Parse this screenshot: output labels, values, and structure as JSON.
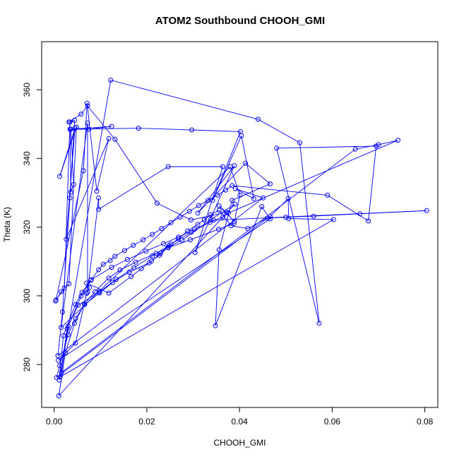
{
  "chart_data": {
    "type": "line",
    "title": "ATOM2 Southbound CHOOH_GMI",
    "xlabel": "CHOOH_GMI",
    "ylabel": "Theta (K)",
    "xlim": [
      -0.0027,
      0.0828
    ],
    "ylim": [
      267.5,
      374
    ],
    "xticks": [
      0.0,
      0.02,
      0.04,
      0.06,
      0.08
    ],
    "xtick_labels": [
      "0.00",
      "0.02",
      "0.04",
      "0.06",
      "0.08"
    ],
    "yticks": [
      280,
      300,
      320,
      340,
      360
    ],
    "ytick_labels": [
      "280",
      "300",
      "320",
      "340",
      "360"
    ],
    "grid": false,
    "legend": "none",
    "series": [
      {
        "color": "#0000ff",
        "marker": "open-circle",
        "x": [
          0.0003,
          0.0015,
          0.0032,
          0.0048,
          0.0012,
          0.0045,
          0.0026,
          0.0118,
          0.0092,
          0.0071,
          0.0063,
          0.0004,
          0.0022,
          0.0034,
          0.0036,
          0.0042,
          0.0036,
          0.0075,
          0.0124,
          0.0034,
          0.0182,
          0.0297,
          0.0402,
          0.0342,
          0.0404,
          0.0431,
          0.0391,
          0.0451,
          0.0008,
          0.0018,
          0.0034,
          0.0044,
          0.0032,
          0.0058,
          0.0072,
          0.0131,
          0.0222,
          0.0295,
          0.0372,
          0.0356,
          0.0389,
          0.0401,
          0.038,
          0.0015,
          0.0072,
          0.0072,
          0.0096,
          0.0096,
          0.0246,
          0.0364,
          0.0304,
          0.0389,
          0.031,
          0.0413,
          0.0466,
          0.0384,
          0.0356,
          0.0348,
          0.0448,
          0.0466,
          0.0009,
          0.0046,
          0.007,
          0.0076,
          0.007,
          0.0118,
          0.0166,
          0.0188,
          0.021,
          0.023,
          0.0248,
          0.0268,
          0.0288,
          0.031,
          0.0324,
          0.0338,
          0.0356,
          0.0382,
          0.0418,
          0.0466,
          0.0505,
          0.0506,
          0.0603,
          0.0013,
          0.0028,
          0.0058,
          0.0079,
          0.0096,
          0.0106,
          0.0121,
          0.0131,
          0.0152,
          0.0171,
          0.0192,
          0.0212,
          0.0232,
          0.0252,
          0.0272,
          0.0292,
          0.0312,
          0.0332,
          0.0352,
          0.037,
          0.0384,
          0.059,
          0.0678,
          0.0695,
          0.048,
          0.0572,
          0.053,
          0.044,
          0.0122,
          0.0011,
          0.002,
          0.0046,
          0.006,
          0.008,
          0.0124,
          0.0158,
          0.0198,
          0.0236,
          0.0268,
          0.0303,
          0.0336,
          0.0364,
          0.0376,
          0.0742,
          0.07,
          0.065,
          0.0016,
          0.003,
          0.0052,
          0.0098,
          0.0134,
          0.0172,
          0.0212,
          0.0252,
          0.0296,
          0.0344,
          0.0804,
          0.066,
          0.056,
          0.05,
          0.046,
          0.0005,
          0.0012,
          0.003,
          0.0046,
          0.0066,
          0.0098,
          0.0126,
          0.0162,
          0.0205,
          0.0227,
          0.0245,
          0.0276,
          0.0338,
          0.039,
          0.001,
          0.0024,
          0.0044,
          0.0065,
          0.0088,
          0.0118,
          0.0142,
          0.0176,
          0.022,
          0.0246,
          0.0294,
          0.0355,
          0.0388
        ],
        "y": [
          298.5,
          301.2,
          303.5,
          349.1,
          334.8,
          348.8,
          316.5,
          345.8,
          330.5,
          356.1,
          336.4,
          298.8,
          302.3,
          350.6,
          330.2,
          332.4,
          348.5,
          348.5,
          349.3,
          348.5,
          348.8,
          348.3,
          347.8,
          327.8,
          346.6,
          328.3,
          331.2,
          328.5,
          282.6,
          295.3,
          328.5,
          351.1,
          350.6,
          352.9,
          355.3,
          345.6,
          327.0,
          322.1,
          324.3,
          326.2,
          321.7,
          329.3,
          337.6,
          290.8,
          350.3,
          301.1,
          328.5,
          325.2,
          337.6,
          337.6,
          312.6,
          337.9,
          324.1,
          338.6,
          332.6,
          327.8,
          313.4,
          291.3,
          326.0,
          322.4,
          281.2,
          286.2,
          300.7,
          302.4,
          303.7,
          300.8,
          305.6,
          307.9,
          310.1,
          312.4,
          314.6,
          316.6,
          318.9,
          320.8,
          322.1,
          323.6,
          324.9,
          320.4,
          319.6,
          323.1,
          328.3,
          322.5,
          322.2,
          276.4,
          290.4,
          299.9,
          304.5,
          307.6,
          309.2,
          310.3,
          311.5,
          313.2,
          314.7,
          316.3,
          317.9,
          319.6,
          321.3,
          322.9,
          324.6,
          326.3,
          327.8,
          329.3,
          330.8,
          332.1,
          329.3,
          321.8,
          343.6,
          343.0,
          292.0,
          344.6,
          351.4,
          362.8,
          275.5,
          288.4,
          297.5,
          301.0,
          304.7,
          308.3,
          310.6,
          313.0,
          315.2,
          317.1,
          319.4,
          321.4,
          323.0,
          324.1,
          345.3,
          344.0,
          342.7,
          277.7,
          291.2,
          297.3,
          301.2,
          304.8,
          308.2,
          311.6,
          315.1,
          318.5,
          322.0,
          324.8,
          323.9,
          323.2,
          322.9,
          322.6,
          276.2,
          279.7,
          288.7,
          293.4,
          297.5,
          300.8,
          303.9,
          306.9,
          309.6,
          311.8,
          314.1,
          316.2,
          322.2,
          326.7,
          270.9,
          283.4,
          292.0,
          297.6,
          301.2,
          305.2,
          307.5,
          309.8,
          312.4,
          314.0,
          316.3,
          319.4,
          321.1
        ]
      }
    ]
  }
}
